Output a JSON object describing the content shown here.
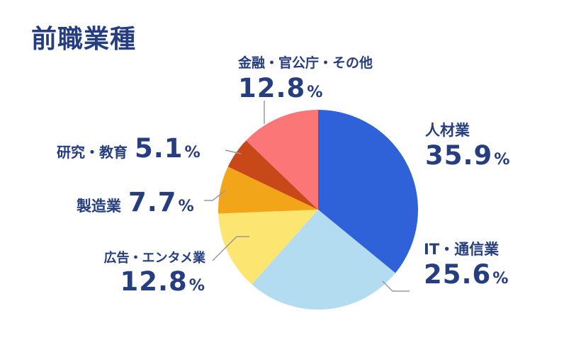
{
  "chart_data": {
    "type": "pie",
    "title": "前職業種",
    "categories": [
      "人材業",
      "IT・通信業",
      "広告・エンタメ業",
      "製造業",
      "研究・教育",
      "金融・官公庁・その他"
    ],
    "values": [
      35.9,
      25.6,
      12.8,
      7.7,
      5.1,
      12.8
    ],
    "value_labels": [
      "35.9",
      "25.6",
      "12.8",
      "7.7",
      "5.1",
      "12.8"
    ],
    "unit": "%",
    "colors": [
      "#2f62d9",
      "#b3dcf1",
      "#fde572",
      "#f3a519",
      "#c8481a",
      "#fb7777"
    ],
    "start_angle_deg": 0,
    "direction": "clockwise",
    "legend": "none"
  }
}
